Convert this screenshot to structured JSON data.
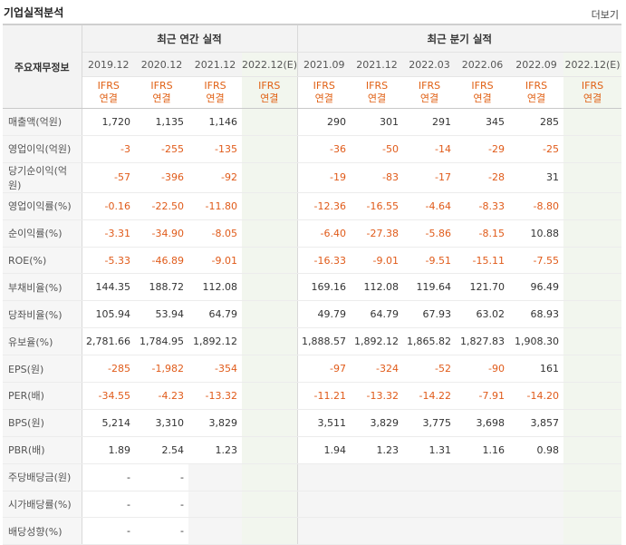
{
  "page_title": "기업실적분석",
  "more_label": "더보기",
  "row_header_label": "주요재무정보",
  "groups": {
    "annual": "최근 연간 실적",
    "quarterly": "최근 분기 실적"
  },
  "periods": [
    "2019.12",
    "2020.12",
    "2021.12",
    "2022.12(E)",
    "2021.09",
    "2021.12",
    "2022.03",
    "2022.06",
    "2022.09",
    "2022.12(E)"
  ],
  "ifrs_top": "IFRS",
  "ifrs_bottom": "연결",
  "rows": [
    {
      "label": "매출액(억원)",
      "values": [
        "1,720",
        "1,135",
        "1,146",
        "",
        "290",
        "301",
        "291",
        "345",
        "285",
        ""
      ]
    },
    {
      "label": "영업이익(억원)",
      "values": [
        "-3",
        "-255",
        "-135",
        "",
        "-36",
        "-50",
        "-14",
        "-29",
        "-25",
        ""
      ]
    },
    {
      "label": "당기순이익(억원)",
      "values": [
        "-57",
        "-396",
        "-92",
        "",
        "-19",
        "-83",
        "-17",
        "-28",
        "31",
        ""
      ]
    },
    {
      "label": "영업이익률(%)",
      "values": [
        "-0.16",
        "-22.50",
        "-11.80",
        "",
        "-12.36",
        "-16.55",
        "-4.64",
        "-8.33",
        "-8.80",
        ""
      ]
    },
    {
      "label": "순이익률(%)",
      "values": [
        "-3.31",
        "-34.90",
        "-8.05",
        "",
        "-6.40",
        "-27.38",
        "-5.86",
        "-8.15",
        "10.88",
        ""
      ]
    },
    {
      "label": "ROE(%)",
      "values": [
        "-5.33",
        "-46.89",
        "-9.01",
        "",
        "-16.33",
        "-9.01",
        "-9.51",
        "-15.11",
        "-7.55",
        ""
      ]
    },
    {
      "label": "부채비율(%)",
      "values": [
        "144.35",
        "188.72",
        "112.08",
        "",
        "169.16",
        "112.08",
        "119.64",
        "121.70",
        "96.49",
        ""
      ]
    },
    {
      "label": "당좌비율(%)",
      "values": [
        "105.94",
        "53.94",
        "64.79",
        "",
        "49.79",
        "64.79",
        "67.93",
        "63.02",
        "68.93",
        ""
      ]
    },
    {
      "label": "유보율(%)",
      "values": [
        "2,781.66",
        "1,784.95",
        "1,892.12",
        "",
        "1,888.57",
        "1,892.12",
        "1,865.82",
        "1,827.83",
        "1,908.30",
        ""
      ]
    },
    {
      "label": "EPS(원)",
      "values": [
        "-285",
        "-1,982",
        "-354",
        "",
        "-97",
        "-324",
        "-52",
        "-90",
        "161",
        ""
      ]
    },
    {
      "label": "PER(배)",
      "values": [
        "-34.55",
        "-4.23",
        "-13.32",
        "",
        "-11.21",
        "-13.32",
        "-14.22",
        "-7.91",
        "-14.20",
        ""
      ]
    },
    {
      "label": "BPS(원)",
      "values": [
        "5,214",
        "3,310",
        "3,829",
        "",
        "3,511",
        "3,829",
        "3,775",
        "3,698",
        "3,857",
        ""
      ]
    },
    {
      "label": "PBR(배)",
      "values": [
        "1.89",
        "2.54",
        "1.23",
        "",
        "1.94",
        "1.23",
        "1.31",
        "1.16",
        "0.98",
        ""
      ]
    },
    {
      "label": "주당배당금(원)",
      "values": [
        "-",
        "-",
        "",
        "",
        "",
        "",
        "",
        "",
        "",
        ""
      ]
    },
    {
      "label": "시가배당률(%)",
      "values": [
        "-",
        "-",
        "",
        "",
        "",
        "",
        "",
        "",
        "",
        ""
      ]
    },
    {
      "label": "배당성향(%)",
      "values": [
        "-",
        "-",
        "",
        "",
        "",
        "",
        "",
        "",
        "",
        ""
      ]
    }
  ]
}
